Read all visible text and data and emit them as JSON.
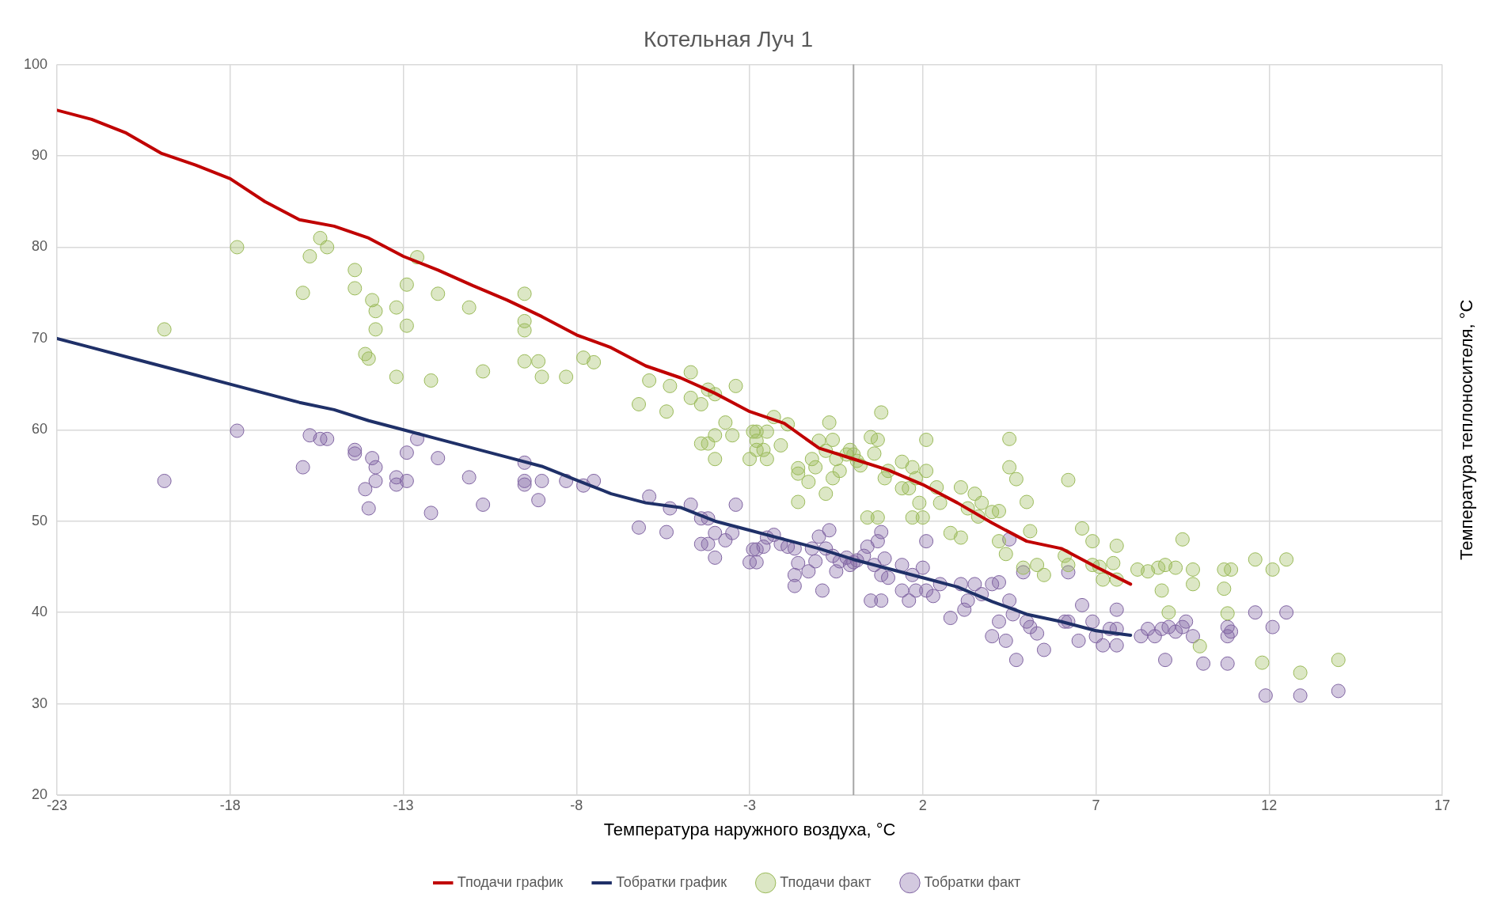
{
  "chart_data": {
    "type": "scatter",
    "title": "Котельная Луч 1",
    "xlabel": "Температура наружного воздуха, °С",
    "ylabel": "Температура теплоносителя, °С",
    "xlim": [
      -23,
      17
    ],
    "xticks": [
      -23,
      -18,
      -13,
      -8,
      -3,
      2,
      7,
      12,
      17
    ],
    "ylim": [
      20,
      100
    ],
    "yticks": [
      20,
      30,
      40,
      50,
      60,
      70,
      80,
      90,
      100
    ],
    "grid": true,
    "legend": "bottom",
    "ref_lines": [
      {
        "axis": "x",
        "value": 0,
        "color": "#a6a6a6"
      }
    ],
    "series": [
      {
        "name": "Тподачи график",
        "type": "line",
        "color": "#c00000",
        "marker": "none",
        "line_style": "solid",
        "x": [
          -23,
          -22,
          -21,
          -20,
          -19,
          -18,
          -17,
          -16,
          -15,
          -14,
          -13,
          -12,
          -11,
          -10,
          -9,
          -8,
          -7,
          -6,
          -5,
          -4,
          -3,
          -2,
          -1,
          0,
          1,
          2,
          3,
          4,
          5,
          6,
          7,
          8
        ],
        "values": [
          95,
          94,
          92.5,
          90.3,
          89,
          87.5,
          85,
          83,
          82.3,
          81,
          79,
          77.5,
          75.8,
          74.2,
          72.4,
          70.4,
          69,
          67,
          65.7,
          64,
          62,
          60.7,
          58,
          56.8,
          55.6,
          54,
          52,
          49.8,
          47.8,
          47,
          45,
          43.1
        ]
      },
      {
        "name": "Тобратки график",
        "type": "line",
        "color": "#1f3068",
        "marker": "none",
        "line_style": "solid",
        "x": [
          -23,
          -22,
          -21,
          -20,
          -19,
          -18,
          -17,
          -16,
          -15,
          -14,
          -13,
          -12,
          -11,
          -10,
          -9,
          -8,
          -7,
          -6,
          -5,
          -4,
          -3,
          -2,
          -1,
          0,
          1,
          2,
          3,
          4,
          5,
          6,
          7,
          8
        ],
        "values": [
          70,
          69,
          68,
          67,
          66,
          65,
          64,
          63,
          62.2,
          61,
          60,
          59,
          58,
          57,
          56,
          54.5,
          53,
          52,
          51.5,
          50,
          49,
          48,
          47,
          45.8,
          44.8,
          43.8,
          42.8,
          41.2,
          39.8,
          39,
          38,
          37.5
        ]
      },
      {
        "name": "Тподачи факт",
        "type": "scatter",
        "color": "#9bbb59",
        "marker": "circle",
        "x": [
          -19.9,
          -17.8,
          -15.9,
          -15.7,
          -15.4,
          -15.2,
          -14.4,
          -14.4,
          -13.9,
          -13.8,
          -13.8,
          -14.1,
          -14.0,
          -13.2,
          -13.2,
          -12.9,
          -12.9,
          -12.6,
          -12.2,
          -12.0,
          -11.1,
          -10.7,
          -9.5,
          -9.5,
          -9.5,
          -9.5,
          -9.1,
          -9.0,
          -8.3,
          -7.8,
          -7.5,
          -6.2,
          -5.9,
          -5.4,
          -5.3,
          -4.7,
          -4.7,
          -4.4,
          -4.4,
          -4.2,
          -4.2,
          -4.0,
          -4.0,
          -4.0,
          -3.7,
          -3.5,
          -3.4,
          -3.0,
          -2.9,
          -2.8,
          -2.8,
          -2.8,
          -2.6,
          -2.5,
          -2.5,
          -2.3,
          -1.9,
          -2.1,
          -1.6,
          -1.6,
          -1.6,
          -1.2,
          -1.3,
          -1.1,
          -1.0,
          -0.8,
          -0.8,
          -0.7,
          -0.6,
          -0.6,
          -0.5,
          -0.4,
          -0.2,
          -0.1,
          0.0,
          0.1,
          0.2,
          0.4,
          0.5,
          0.6,
          0.7,
          0.7,
          0.8,
          0.9,
          1.0,
          1.4,
          1.4,
          1.6,
          1.7,
          1.7,
          1.8,
          1.9,
          2.1,
          2.1,
          2.0,
          2.4,
          2.5,
          2.8,
          3.1,
          3.1,
          3.3,
          3.5,
          3.6,
          3.7,
          4.0,
          4.2,
          4.2,
          4.4,
          4.5,
          4.5,
          4.7,
          4.9,
          5.0,
          5.1,
          5.3,
          5.5,
          6.2,
          6.1,
          6.2,
          6.6,
          6.9,
          6.9,
          7.1,
          7.2,
          7.6,
          7.5,
          7.6,
          8.2,
          8.5,
          8.8,
          8.9,
          9.0,
          9.1,
          9.3,
          9.5,
          9.8,
          9.8,
          10.0,
          10.7,
          10.7,
          10.9,
          11.6,
          11.8,
          12.1,
          12.5,
          12.9,
          14.0,
          10.8
        ],
        "values": [
          71,
          80,
          75,
          79,
          81,
          80,
          77.5,
          75.5,
          74.2,
          73,
          71,
          68.3,
          67.8,
          73.4,
          65.8,
          75.9,
          71.4,
          78.9,
          65.4,
          74.9,
          73.4,
          66.4,
          74.9,
          71.9,
          70.9,
          67.5,
          67.5,
          65.8,
          65.8,
          67.9,
          67.4,
          62.8,
          65.4,
          62,
          64.8,
          63.5,
          66.3,
          62.8,
          58.5,
          58.5,
          64.4,
          63.9,
          59.4,
          56.8,
          60.8,
          59.4,
          64.8,
          56.8,
          59.8,
          59.8,
          58.8,
          57.8,
          57.8,
          59.8,
          56.8,
          61.4,
          60.6,
          58.3,
          55.8,
          55.2,
          52.1,
          56.8,
          54.3,
          55.9,
          58.8,
          57.7,
          53,
          60.8,
          58.9,
          54.7,
          56.8,
          55.5,
          57.3,
          57.8,
          57.3,
          56.6,
          56.1,
          50.4,
          59.2,
          57.4,
          50.4,
          58.9,
          61.9,
          54.7,
          55.5,
          53.6,
          56.5,
          53.6,
          50.4,
          55.9,
          54.7,
          52,
          58.9,
          55.5,
          50.4,
          53.7,
          52,
          48.7,
          48.2,
          53.7,
          51.4,
          53,
          50.5,
          52,
          51,
          51.1,
          47.8,
          46.4,
          59,
          55.9,
          54.6,
          44.9,
          52.1,
          48.9,
          45.2,
          44.1,
          54.5,
          46.2,
          45.2,
          49.2,
          47.8,
          45.2,
          45,
          43.6,
          47.3,
          45.4,
          43.6,
          44.7,
          44.5,
          44.9,
          42.4,
          45.2,
          40,
          44.9,
          48,
          44.7,
          43.1,
          36.3,
          42.6,
          44.7,
          44.7,
          45.8,
          34.5,
          44.7,
          45.8,
          33.4,
          34.8,
          39.9
        ]
      },
      {
        "name": "Тобратки факт",
        "type": "scatter",
        "color": "#8064a2",
        "marker": "circle",
        "x": [
          -19.9,
          -17.8,
          -15.9,
          -15.7,
          -15.4,
          -15.2,
          -14.4,
          -14.4,
          -14.1,
          -14.0,
          -13.9,
          -13.8,
          -13.8,
          -13.2,
          -13.2,
          -12.9,
          -12.9,
          -12.6,
          -12.2,
          -12.0,
          -11.1,
          -10.7,
          -9.5,
          -9.5,
          -9.5,
          -9.1,
          -9.0,
          -8.3,
          -7.8,
          -7.5,
          -5.9,
          -6.2,
          -5.4,
          -5.3,
          -4.7,
          -4.4,
          -4.4,
          -4.2,
          -4.2,
          -4.0,
          -4.0,
          -3.7,
          -3.5,
          -3.4,
          -3.0,
          -2.9,
          -2.8,
          -2.6,
          -2.8,
          -2.5,
          -2.3,
          -2.1,
          -1.9,
          -1.7,
          -1.6,
          -1.7,
          -1.7,
          -1.2,
          -1.1,
          -1.3,
          -1.0,
          -0.9,
          -0.7,
          -0.8,
          -0.6,
          -0.5,
          -0.4,
          -0.2,
          -0.1,
          0.0,
          0.1,
          0.3,
          0.4,
          0.5,
          0.6,
          0.7,
          0.8,
          0.8,
          0.8,
          0.9,
          1.0,
          1.4,
          1.4,
          1.6,
          1.7,
          1.8,
          2.0,
          2.1,
          2.1,
          2.3,
          2.5,
          2.8,
          3.1,
          3.2,
          3.3,
          3.5,
          3.7,
          4.0,
          4.0,
          4.2,
          4.2,
          4.4,
          4.5,
          4.5,
          4.6,
          4.7,
          4.9,
          5.0,
          5.1,
          5.3,
          5.5,
          6.2,
          6.1,
          6.2,
          6.6,
          6.5,
          6.9,
          7.0,
          7.2,
          7.4,
          7.6,
          7.6,
          7.6,
          8.3,
          8.5,
          8.7,
          8.9,
          9.0,
          9.1,
          9.3,
          9.5,
          9.6,
          9.8,
          10.1,
          10.8,
          10.8,
          10.9,
          10.8,
          11.6,
          11.9,
          12.1,
          12.5,
          12.9,
          14.0
        ],
        "values": [
          54.4,
          59.9,
          55.9,
          59.4,
          59,
          59,
          57.8,
          57.4,
          53.5,
          51.4,
          56.9,
          55.9,
          54.4,
          54.8,
          54,
          57.5,
          54.4,
          59,
          50.9,
          56.9,
          54.8,
          51.8,
          56.4,
          54.4,
          54,
          52.3,
          54.4,
          54.4,
          53.9,
          54.4,
          52.7,
          49.3,
          48.8,
          51.4,
          51.8,
          50.3,
          47.5,
          47.5,
          50.3,
          48.7,
          46,
          47.9,
          48.7,
          51.8,
          45.5,
          46.9,
          46.9,
          47.2,
          45.5,
          48.2,
          48.5,
          47.5,
          47.2,
          47,
          45.4,
          44.1,
          42.9,
          47,
          45.6,
          44.5,
          48.3,
          42.4,
          49,
          47,
          46.2,
          44.5,
          45.6,
          46,
          45.2,
          45.5,
          45.7,
          46.2,
          47.2,
          41.3,
          45.2,
          47.8,
          48.8,
          44.1,
          41.3,
          45.9,
          43.8,
          45.2,
          42.4,
          41.3,
          44.1,
          42.4,
          44.9,
          47.8,
          42.4,
          41.8,
          43.1,
          39.4,
          43.1,
          40.3,
          41.3,
          43.1,
          42,
          43.1,
          37.4,
          43.3,
          39,
          36.9,
          48,
          41.3,
          39.8,
          34.8,
          44.4,
          39,
          38.4,
          37.7,
          35.9,
          44.4,
          39,
          39,
          40.8,
          36.9,
          39,
          37.4,
          36.4,
          38.2,
          38.2,
          36.4,
          40.3,
          37.4,
          38.2,
          37.4,
          38.2,
          34.8,
          38.4,
          37.9,
          38.4,
          39,
          37.4,
          34.4,
          38.4,
          37.4,
          37.9,
          34.4,
          40,
          30.9,
          38.4,
          40,
          30.9,
          31.4
        ]
      }
    ]
  }
}
